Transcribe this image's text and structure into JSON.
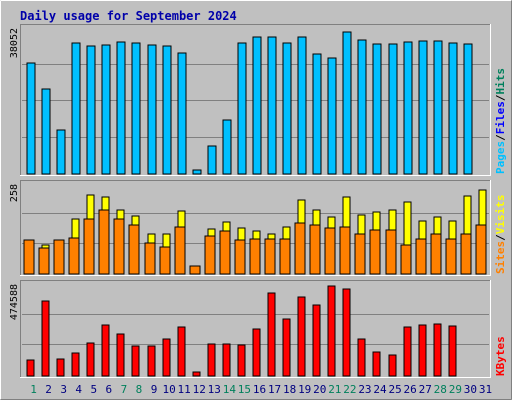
{
  "title": "Daily usage for September 2024",
  "colors": {
    "background": "#c0c0c0",
    "frame_light": "#ffffff",
    "frame_dark": "#808080",
    "grid": "#808080",
    "hits": "#00805c",
    "files": "#0000ff",
    "pages": "#00c0ff",
    "visits": "#ffff00",
    "sites": "#ff8000",
    "kbytes": "#ff0000",
    "weekend_day": "#00805c",
    "weekday_day": "#000080",
    "title": "#0000aa"
  },
  "days": [
    "1",
    "2",
    "3",
    "4",
    "5",
    "6",
    "7",
    "8",
    "9",
    "10",
    "11",
    "12",
    "13",
    "14",
    "15",
    "16",
    "17",
    "18",
    "19",
    "20",
    "21",
    "22",
    "23",
    "24",
    "25",
    "26",
    "27",
    "28",
    "29",
    "30",
    "31"
  ],
  "weekend_days": [
    1,
    7,
    8,
    14,
    15,
    21,
    22,
    28,
    29
  ],
  "chart_data": [
    {
      "type": "bar",
      "panel": "requests",
      "ylabel_max": "38052",
      "ylim": [
        0,
        38052
      ],
      "series_labels": [
        "Pages",
        "Files",
        "Hits"
      ],
      "series": [
        {
          "name": "Hits",
          "values": [
            0,
            0,
            0,
            0,
            0,
            0,
            0,
            0,
            0,
            0,
            0,
            0,
            0,
            0,
            0,
            0,
            0,
            0,
            0,
            0,
            0,
            0,
            0,
            0,
            0,
            0,
            0,
            0,
            0,
            0,
            0
          ]
        },
        {
          "name": "Files",
          "values": [
            0,
            0,
            0,
            0,
            0,
            0,
            0,
            0,
            0,
            0,
            0,
            0,
            0,
            0,
            0,
            0,
            0,
            0,
            0,
            0,
            0,
            0,
            0,
            0,
            0,
            0,
            0,
            0,
            0,
            0,
            0
          ]
        },
        {
          "name": "Pages",
          "values": [
            29200,
            22500,
            11500,
            34500,
            33800,
            34200,
            34800,
            34500,
            34200,
            33700,
            32000,
            1000,
            7300,
            14300,
            34600,
            36300,
            36300,
            34500,
            36200,
            31600,
            30600,
            37500,
            35500,
            34300,
            34300,
            34800,
            35100,
            35100,
            34700,
            34400,
            0
          ]
        }
      ]
    },
    {
      "type": "bar",
      "panel": "visits",
      "ylabel_max": "258",
      "ylim": [
        0,
        258
      ],
      "series_labels": [
        "Sites",
        "Visits"
      ],
      "series": [
        {
          "name": "Visits",
          "values": [
            100,
            86,
            100,
            160,
            232,
            226,
            188,
            170,
            117,
            117,
            185,
            22,
            132,
            153,
            134,
            125,
            116,
            138,
            216,
            188,
            166,
            226,
            173,
            181,
            188,
            210,
            154,
            168,
            155,
            230,
            247
          ]
        },
        {
          "name": "Sites",
          "values": [
            99,
            76,
            100,
            107,
            160,
            189,
            161,
            145,
            91,
            79,
            139,
            22,
            110,
            127,
            100,
            103,
            103,
            104,
            149,
            145,
            135,
            137,
            116,
            130,
            130,
            86,
            104,
            117,
            103,
            117,
            145
          ]
        }
      ]
    },
    {
      "type": "bar",
      "panel": "kbytes",
      "ylabel_max": "474588",
      "ylim": [
        0,
        474588
      ],
      "series_labels": [
        "KBytes"
      ],
      "series": [
        {
          "name": "KBytes",
          "values": [
            82000,
            396000,
            90000,
            121000,
            173000,
            268000,
            223000,
            157000,
            157000,
            195000,
            260000,
            23000,
            171000,
            171000,
            161000,
            247000,
            439000,
            303000,
            418000,
            373000,
            474588,
            459000,
            195000,
            124000,
            112000,
            256000,
            270000,
            276000,
            262000,
            0,
            0
          ]
        }
      ]
    }
  ]
}
